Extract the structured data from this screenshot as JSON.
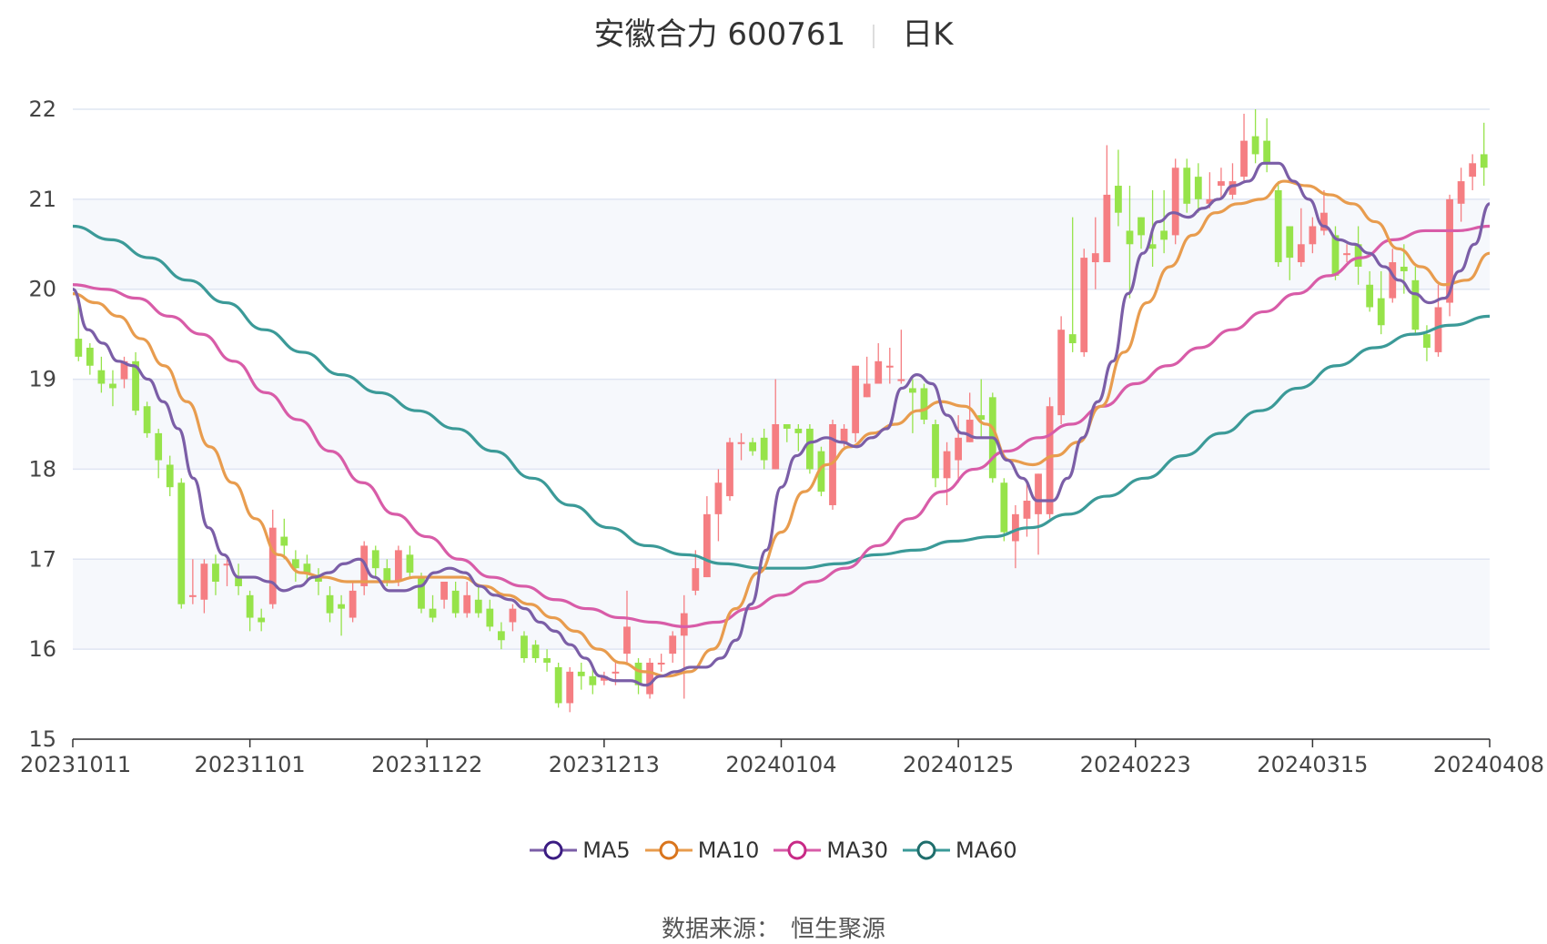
{
  "title": {
    "name": "安徽合力 600761",
    "period": "日K"
  },
  "source": {
    "label": "数据来源：",
    "value": "恒生聚源"
  },
  "colors": {
    "up": "#f57e82",
    "down": "#96e34a",
    "ma5": "#7b5ea7",
    "ma10": "#e89c4e",
    "ma30": "#d85ca8",
    "ma60": "#3b9a98",
    "grid": "#dfe5f2",
    "band": "#f6f8fc"
  },
  "chart_data": {
    "type": "candlestick",
    "ylim": [
      15,
      22
    ],
    "yticks": [
      15,
      16,
      17,
      18,
      19,
      20,
      21,
      22
    ],
    "x_ticks": [
      "20231011",
      "20231101",
      "20231122",
      "20231213",
      "20240104",
      "20240125",
      "20240223",
      "20240315",
      "20240408"
    ],
    "legend": [
      "MA5",
      "MA10",
      "MA30",
      "MA60"
    ],
    "legend_position": "bottom",
    "ohlc": [
      [
        19.45,
        19.25,
        19.9,
        19.2
      ],
      [
        19.35,
        19.15,
        19.4,
        19.05
      ],
      [
        19.1,
        18.95,
        19.25,
        18.85
      ],
      [
        18.95,
        18.9,
        19.1,
        18.7
      ],
      [
        19.0,
        19.2,
        19.25,
        18.9
      ],
      [
        19.2,
        18.65,
        19.3,
        18.6
      ],
      [
        18.7,
        18.4,
        18.75,
        18.35
      ],
      [
        18.4,
        18.1,
        18.45,
        17.9
      ],
      [
        18.05,
        17.8,
        18.15,
        17.7
      ],
      [
        17.85,
        16.5,
        17.9,
        16.45
      ],
      [
        16.6,
        16.6,
        17.0,
        16.5
      ],
      [
        16.55,
        16.95,
        17.0,
        16.4
      ],
      [
        16.95,
        16.75,
        17.05,
        16.6
      ],
      [
        16.95,
        16.95,
        17.0,
        16.7
      ],
      [
        16.8,
        16.7,
        16.95,
        16.6
      ],
      [
        16.6,
        16.35,
        16.65,
        16.2
      ],
      [
        16.35,
        16.3,
        16.45,
        16.2
      ],
      [
        16.5,
        17.35,
        17.55,
        16.45
      ],
      [
        17.25,
        17.15,
        17.45,
        17.0
      ],
      [
        17.0,
        16.9,
        17.1,
        16.75
      ],
      [
        16.95,
        16.85,
        17.05,
        16.75
      ],
      [
        16.8,
        16.75,
        16.9,
        16.6
      ],
      [
        16.6,
        16.4,
        16.7,
        16.3
      ],
      [
        16.5,
        16.45,
        16.6,
        16.15
      ],
      [
        16.35,
        16.65,
        16.75,
        16.3
      ],
      [
        16.7,
        17.15,
        17.2,
        16.6
      ],
      [
        17.1,
        16.9,
        17.15,
        16.8
      ],
      [
        16.9,
        16.75,
        17.0,
        16.7
      ],
      [
        16.75,
        17.1,
        17.15,
        16.7
      ],
      [
        17.05,
        16.85,
        17.15,
        16.8
      ],
      [
        16.8,
        16.45,
        16.85,
        16.4
      ],
      [
        16.45,
        16.35,
        16.6,
        16.3
      ],
      [
        16.55,
        16.75,
        16.75,
        16.45
      ],
      [
        16.65,
        16.4,
        16.75,
        16.35
      ],
      [
        16.4,
        16.6,
        16.75,
        16.35
      ],
      [
        16.55,
        16.4,
        16.7,
        16.35
      ],
      [
        16.45,
        16.25,
        16.55,
        16.2
      ],
      [
        16.2,
        16.1,
        16.3,
        16.0
      ],
      [
        16.3,
        16.45,
        16.5,
        16.2
      ],
      [
        16.15,
        15.9,
        16.2,
        15.85
      ],
      [
        16.05,
        15.9,
        16.1,
        15.85
      ],
      [
        15.9,
        15.85,
        16.0,
        15.75
      ],
      [
        15.8,
        15.4,
        15.85,
        15.35
      ],
      [
        15.4,
        15.75,
        15.8,
        15.3
      ],
      [
        15.75,
        15.7,
        15.85,
        15.55
      ],
      [
        15.7,
        15.6,
        15.8,
        15.5
      ],
      [
        15.65,
        15.7,
        15.75,
        15.6
      ],
      [
        15.75,
        15.75,
        15.85,
        15.6
      ],
      [
        15.95,
        16.25,
        16.65,
        15.85
      ],
      [
        15.85,
        15.6,
        15.9,
        15.5
      ],
      [
        15.5,
        15.85,
        15.9,
        15.45
      ],
      [
        15.85,
        15.85,
        15.95,
        15.75
      ],
      [
        15.95,
        16.15,
        16.2,
        15.85
      ],
      [
        16.15,
        16.4,
        16.6,
        15.45
      ],
      [
        16.65,
        16.9,
        17.1,
        16.6
      ],
      [
        16.8,
        17.5,
        17.7,
        16.8
      ],
      [
        17.5,
        17.85,
        18.0,
        17.2
      ],
      [
        17.7,
        18.3,
        18.35,
        17.65
      ],
      [
        18.3,
        18.3,
        18.4,
        18.1
      ],
      [
        18.3,
        18.2,
        18.35,
        18.15
      ],
      [
        18.35,
        18.1,
        18.45,
        18.0
      ],
      [
        18.0,
        18.5,
        19.0,
        18.0
      ],
      [
        18.5,
        18.45,
        18.5,
        18.3
      ],
      [
        18.45,
        18.4,
        18.5,
        18.2
      ],
      [
        18.45,
        18.0,
        18.5,
        17.95
      ],
      [
        18.2,
        17.75,
        18.25,
        17.7
      ],
      [
        17.6,
        18.5,
        18.55,
        17.55
      ],
      [
        18.3,
        18.45,
        18.5,
        18.25
      ],
      [
        18.4,
        19.15,
        19.15,
        18.3
      ],
      [
        18.8,
        18.95,
        19.25,
        18.8
      ],
      [
        18.95,
        19.2,
        19.4,
        18.95
      ],
      [
        19.15,
        19.15,
        19.35,
        18.95
      ],
      [
        19.0,
        19.0,
        19.55,
        18.95
      ],
      [
        18.9,
        18.85,
        19.0,
        18.4
      ],
      [
        18.9,
        18.55,
        18.95,
        18.5
      ],
      [
        18.5,
        17.9,
        18.55,
        17.8
      ],
      [
        17.9,
        18.2,
        18.3,
        17.6
      ],
      [
        18.1,
        18.35,
        18.6,
        17.85
      ],
      [
        18.3,
        18.55,
        18.85,
        18.3
      ],
      [
        18.6,
        18.55,
        19.0,
        18.35
      ],
      [
        18.8,
        17.9,
        18.85,
        17.85
      ],
      [
        17.85,
        17.3,
        17.9,
        17.2
      ],
      [
        17.2,
        17.5,
        17.6,
        16.9
      ],
      [
        17.45,
        17.65,
        17.85,
        17.25
      ],
      [
        17.5,
        17.95,
        17.95,
        17.05
      ],
      [
        17.5,
        18.7,
        18.8,
        17.45
      ],
      [
        18.6,
        19.55,
        19.7,
        18.5
      ],
      [
        19.5,
        19.4,
        20.8,
        19.3
      ],
      [
        19.3,
        20.35,
        20.45,
        19.25
      ],
      [
        20.3,
        20.4,
        20.8,
        20.0
      ],
      [
        20.3,
        21.05,
        21.6,
        20.3
      ],
      [
        21.15,
        20.85,
        21.55,
        20.7
      ],
      [
        20.65,
        20.5,
        21.15,
        19.9
      ],
      [
        20.8,
        20.6,
        20.8,
        20.45
      ],
      [
        20.5,
        20.45,
        21.1,
        20.25
      ],
      [
        20.65,
        20.55,
        21.1,
        20.4
      ],
      [
        20.6,
        21.35,
        21.45,
        20.5
      ],
      [
        21.35,
        20.95,
        21.45,
        20.85
      ],
      [
        21.25,
        21.0,
        21.4,
        20.85
      ],
      [
        20.95,
        21.0,
        21.3,
        20.9
      ],
      [
        21.15,
        21.2,
        21.35,
        21.0
      ],
      [
        21.05,
        21.2,
        21.4,
        21.0
      ],
      [
        21.25,
        21.65,
        21.95,
        21.2
      ],
      [
        21.7,
        21.5,
        22.0,
        21.4
      ],
      [
        21.65,
        21.4,
        21.9,
        21.3
      ],
      [
        21.1,
        20.3,
        21.2,
        20.25
      ],
      [
        20.7,
        20.35,
        20.55,
        20.1
      ],
      [
        20.3,
        20.5,
        20.9,
        20.25
      ],
      [
        20.5,
        20.7,
        20.8,
        20.4
      ],
      [
        20.65,
        20.85,
        21.1,
        20.6
      ],
      [
        20.6,
        20.15,
        20.7,
        20.1
      ],
      [
        20.4,
        20.4,
        20.5,
        20.3
      ],
      [
        20.5,
        20.25,
        20.7,
        20.05
      ],
      [
        20.05,
        19.8,
        20.2,
        19.75
      ],
      [
        19.9,
        19.6,
        20.2,
        19.5
      ],
      [
        19.9,
        20.3,
        20.45,
        19.85
      ],
      [
        20.25,
        20.2,
        20.5,
        19.95
      ],
      [
        20.1,
        19.55,
        20.25,
        19.5
      ],
      [
        19.5,
        19.35,
        19.6,
        19.2
      ],
      [
        19.3,
        19.8,
        20.05,
        19.25
      ],
      [
        19.85,
        21.0,
        21.05,
        19.7
      ],
      [
        20.95,
        21.2,
        21.35,
        20.75
      ],
      [
        21.25,
        21.4,
        21.5,
        21.1
      ],
      [
        21.5,
        21.35,
        21.85,
        21.15
      ]
    ],
    "ma5": [
      20.0,
      19.55,
      19.4,
      19.2,
      19.15,
      19.0,
      18.75,
      18.45,
      17.9,
      17.35,
      17.05,
      16.8,
      16.8,
      16.75,
      16.65,
      16.7,
      16.8,
      16.85,
      16.95,
      17.0,
      16.8,
      16.65,
      16.65,
      16.7,
      16.85,
      16.9,
      16.85,
      16.7,
      16.6,
      16.55,
      16.45,
      16.3,
      16.2,
      16.05,
      15.9,
      15.7,
      15.65,
      15.65,
      15.6,
      15.7,
      15.75,
      15.8,
      15.8,
      15.9,
      16.1,
      16.5,
      17.1,
      17.8,
      18.15,
      18.3,
      18.35,
      18.3,
      18.25,
      18.35,
      18.45,
      18.9,
      19.05,
      18.95,
      18.6,
      18.4,
      18.35,
      18.35,
      18.1,
      17.9,
      17.65,
      17.65,
      17.9,
      18.35,
      18.75,
      19.2,
      19.95,
      20.4,
      20.75,
      20.85,
      20.8,
      20.9,
      21.0,
      21.15,
      21.2,
      21.4,
      21.4,
      21.2,
      21.0,
      20.7,
      20.55,
      20.5,
      20.4,
      20.25,
      20.1,
      19.95,
      19.85,
      19.9,
      20.2,
      20.5,
      20.95
    ],
    "ma10": [
      19.95,
      19.85,
      19.7,
      19.45,
      19.15,
      18.75,
      18.25,
      17.85,
      17.45,
      17.05,
      16.85,
      16.8,
      16.75,
      16.75,
      16.75,
      16.8,
      16.8,
      16.8,
      16.7,
      16.6,
      16.5,
      16.35,
      16.2,
      16.0,
      15.85,
      15.75,
      15.7,
      15.75,
      16.0,
      16.45,
      16.85,
      17.3,
      17.75,
      18.05,
      18.25,
      18.4,
      18.5,
      18.65,
      18.75,
      18.7,
      18.5,
      18.1,
      18.05,
      18.15,
      18.3,
      18.7,
      19.3,
      19.85,
      20.25,
      20.6,
      20.85,
      20.95,
      21.0,
      21.2,
      21.15,
      21.05,
      20.95,
      20.75,
      20.45,
      20.25,
      20.05,
      20.1,
      20.4
    ],
    "ma30": [
      20.05,
      20.0,
      19.9,
      19.7,
      19.5,
      19.2,
      18.85,
      18.55,
      18.2,
      17.85,
      17.5,
      17.25,
      17.0,
      16.8,
      16.7,
      16.55,
      16.45,
      16.35,
      16.3,
      16.25,
      16.3,
      16.45,
      16.6,
      16.75,
      16.9,
      17.15,
      17.45,
      17.75,
      18.0,
      18.2,
      18.35,
      18.5,
      18.7,
      18.95,
      19.15,
      19.35,
      19.55,
      19.75,
      19.95,
      20.15,
      20.35,
      20.55,
      20.65,
      20.65,
      20.7
    ],
    "ma60": [
      20.7,
      20.55,
      20.35,
      20.1,
      19.85,
      19.55,
      19.3,
      19.05,
      18.85,
      18.65,
      18.45,
      18.2,
      17.9,
      17.6,
      17.35,
      17.15,
      17.05,
      16.95,
      16.9,
      16.9,
      16.95,
      17.05,
      17.1,
      17.2,
      17.25,
      17.35,
      17.5,
      17.7,
      17.9,
      18.15,
      18.4,
      18.65,
      18.9,
      19.15,
      19.35,
      19.5,
      19.6,
      19.7
    ]
  }
}
